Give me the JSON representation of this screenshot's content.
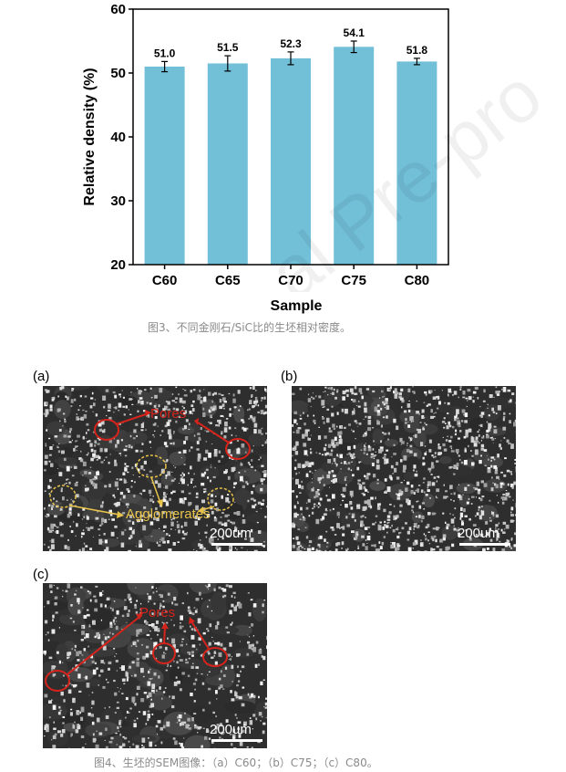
{
  "chart_data": {
    "type": "bar",
    "categories": [
      "C60",
      "C65",
      "C70",
      "C75",
      "C80"
    ],
    "values": [
      51.0,
      51.5,
      52.3,
      54.1,
      51.8
    ],
    "value_labels": [
      "51.0",
      "51.5",
      "52.3",
      "54.1",
      "51.8"
    ],
    "errors": [
      0.8,
      1.2,
      1.0,
      0.9,
      0.5
    ],
    "ylim": [
      20,
      60
    ],
    "yticks": [
      "20",
      "30",
      "40",
      "50",
      "60"
    ],
    "xlabel": "Sample",
    "ylabel": "Relative density (%)",
    "bar_color": "#72bfd8"
  },
  "figure3_caption": "图3、不同金刚石/SiC比的生坯相对密度。",
  "figure4": {
    "panels": [
      {
        "label": "(a)",
        "scale": "200um",
        "pores_label": "Pores",
        "agglomerates_label": "Agglomerates"
      },
      {
        "label": "(b)",
        "scale": "200um"
      },
      {
        "label": "(c)",
        "scale": "200um",
        "pores_label": "Pores"
      }
    ],
    "caption": "图4、生坯的SEM图像：（a）C60；（b）C75；（c）C80。"
  },
  "colors": {
    "pores": "#d6241c",
    "agglomerates": "#e8c44a",
    "caption": "#8a8a8a"
  }
}
